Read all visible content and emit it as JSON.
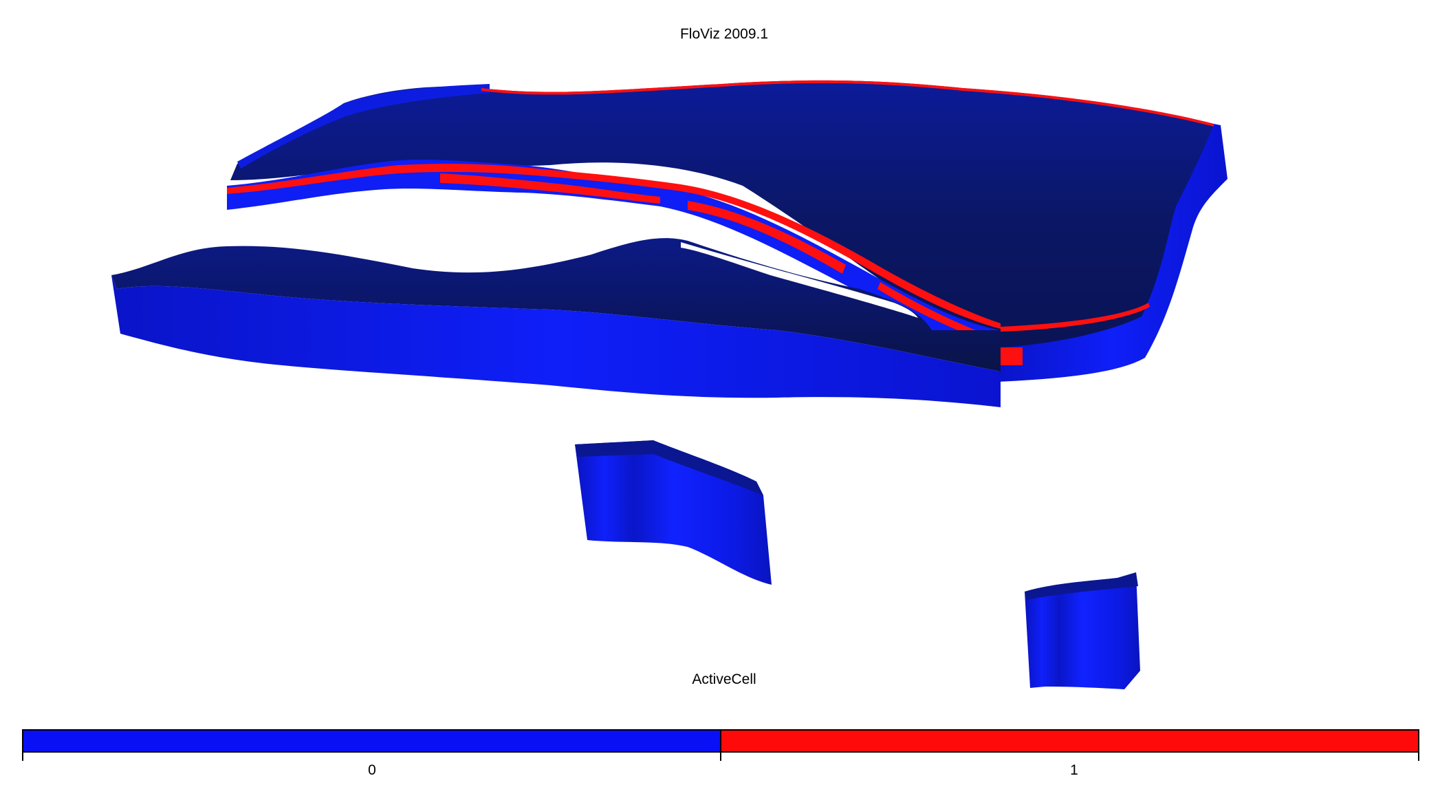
{
  "app": {
    "title": "FloViz 2009.1"
  },
  "legend": {
    "title": "ActiveCell",
    "entries": [
      {
        "label": "0",
        "color": "#0a10f5"
      },
      {
        "label": "1",
        "color": "#ff0a0a"
      }
    ]
  },
  "scene_colors": {
    "top_surface_dark": "#0b1556",
    "top_surface_mid": "#0c1a8c",
    "side_wall": "#0d1cf2",
    "side_wall_shade": "#0a13b8",
    "active_layer": "#ff1010"
  }
}
